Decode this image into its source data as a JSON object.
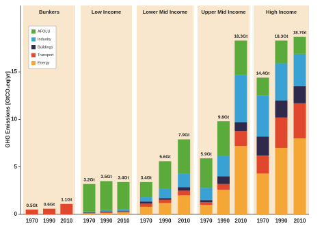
{
  "chart_data": {
    "type": "stacked-bar-facets",
    "ylabel": "GHG Emissions [GtCO₂eq/yr]",
    "facets": [
      "Bunkers",
      "Low Income",
      "Lower Mid Income",
      "Upper Mid Income",
      "High Income"
    ],
    "categories": [
      "1970",
      "1990",
      "2010"
    ],
    "ylim": [
      0,
      22
    ],
    "yticks": [
      0,
      5,
      10,
      15
    ],
    "series": [
      {
        "name": "Energy",
        "color": "#f4a637",
        "values": [
          [
            0,
            0,
            0
          ],
          [
            0.1,
            0.15,
            0.2
          ],
          [
            0.8,
            1.2,
            2.0
          ],
          [
            1.0,
            2.6,
            7.2
          ],
          [
            4.3,
            7.0,
            8.0
          ]
        ]
      },
      {
        "name": "Transport",
        "color": "#e1472c",
        "values": [
          [
            0.5,
            0.6,
            1.1
          ],
          [
            0.05,
            0.1,
            0.1
          ],
          [
            0.35,
            0.35,
            0.5
          ],
          [
            0.3,
            0.6,
            1.6
          ],
          [
            1.9,
            3.2,
            3.7
          ]
        ]
      },
      {
        "name": "Buildings",
        "color": "#2f2a4c",
        "values": [
          [
            0,
            0,
            0
          ],
          [
            0.05,
            0.05,
            0.05
          ],
          [
            0.2,
            0.15,
            0.35
          ],
          [
            0.2,
            0.8,
            0.9
          ],
          [
            2.0,
            1.8,
            1.8
          ]
        ]
      },
      {
        "name": "Industry",
        "color": "#3aa1d4",
        "values": [
          [
            0,
            0,
            0
          ],
          [
            0.1,
            0.15,
            0.2
          ],
          [
            0.45,
            1.0,
            1.45
          ],
          [
            1.3,
            2.2,
            5.0
          ],
          [
            4.3,
            3.9,
            3.4
          ]
        ]
      },
      {
        "name": "AFOLU",
        "color": "#5aab3b",
        "values": [
          [
            0,
            0,
            0
          ],
          [
            2.9,
            3.05,
            2.85
          ],
          [
            1.6,
            2.9,
            3.6
          ],
          [
            3.1,
            3.6,
            3.6
          ],
          [
            1.9,
            2.4,
            1.8
          ]
        ]
      }
    ],
    "totals": {
      "values": [
        [
          0.5,
          0.6,
          1.1
        ],
        [
          3.2,
          3.5,
          3.4
        ],
        [
          3.4,
          5.6,
          7.9
        ],
        [
          5.9,
          9.8,
          18.3
        ],
        [
          14.4,
          18.3,
          18.7
        ]
      ],
      "value_labels": [
        [
          "0.5Gt",
          "0.6Gt",
          "1.1Gt"
        ],
        [
          "3.2Gt",
          "3.5Gt",
          "3.4Gt"
        ],
        [
          "3.4Gt",
          "5.6Gt",
          "7.9Gt"
        ],
        [
          "5.9Gt",
          "9.8Gt",
          "18.3Gt"
        ],
        [
          "14.4Gt",
          "18.3Gt",
          "18.7Gt"
        ]
      ]
    }
  }
}
